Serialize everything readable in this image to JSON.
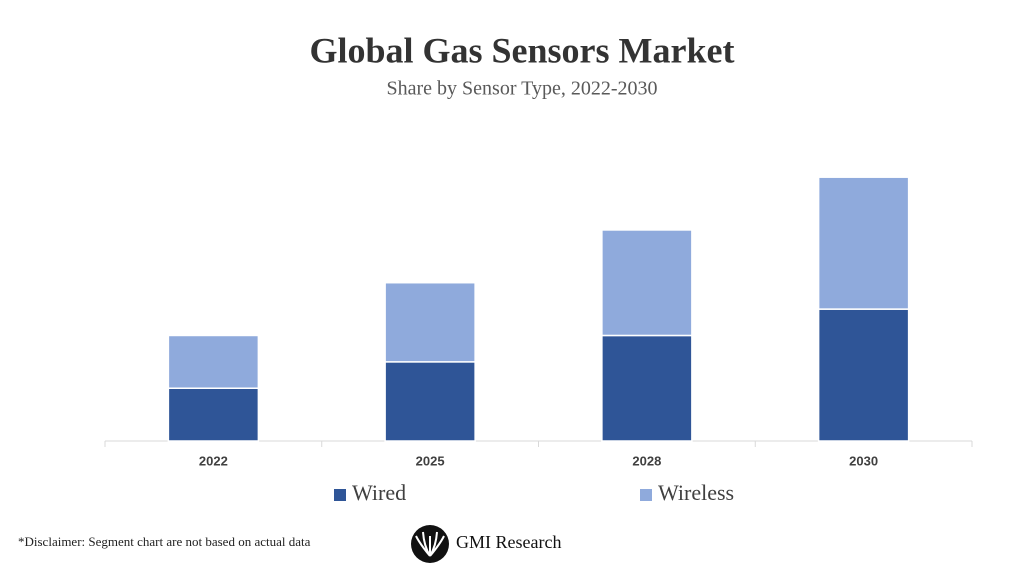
{
  "chart_data": {
    "type": "stacked-bar",
    "title": "Global Gas Sensors Market",
    "subtitle": "Share by Sensor Type, 2022-2030",
    "categories": [
      "2022",
      "2025",
      "2028",
      "2030"
    ],
    "series": [
      {
        "name": "Wired",
        "color": "#2f5597",
        "values": [
          2,
          3,
          4,
          5
        ]
      },
      {
        "name": "Wireless",
        "color": "#8faadc",
        "values": [
          2,
          3,
          4,
          5
        ]
      }
    ],
    "ylim": [
      0,
      10.5
    ],
    "legend": "bottom"
  },
  "footer": {
    "disclaimer": "*Disclaimer:  Segment chart are not based on actual data",
    "brand": "GMI Research"
  }
}
